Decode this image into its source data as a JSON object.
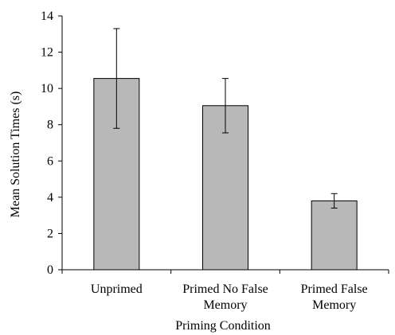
{
  "chart_data": {
    "type": "bar",
    "categories": [
      [
        "Unprimed"
      ],
      [
        "Primed No False",
        "Memory"
      ],
      [
        "Primed False",
        "Memory"
      ]
    ],
    "values": [
      10.55,
      9.05,
      3.8
    ],
    "error_bars": [
      [
        7.8,
        13.3
      ],
      [
        7.55,
        10.55
      ],
      [
        3.4,
        4.2
      ]
    ],
    "xlabel": "Priming Condition",
    "ylabel": "Mean Solution Times (s)",
    "ylim": [
      0,
      14
    ],
    "yticks": [
      0,
      2,
      4,
      6,
      8,
      10,
      12,
      14
    ],
    "grid": false,
    "bar_color": "#b8b8b8",
    "bar_edge_color": "#000000"
  }
}
